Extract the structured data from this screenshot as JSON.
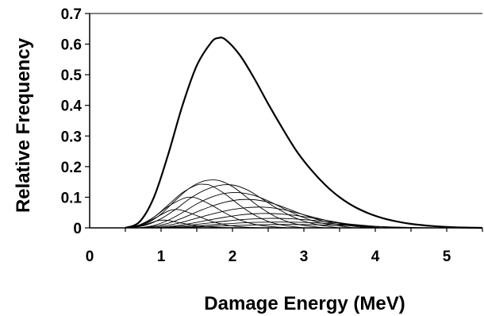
{
  "chart_data": {
    "type": "line",
    "title": "",
    "xlabel": "Damage Energy (MeV)",
    "ylabel": "Relative Frequency",
    "xlim": [
      0,
      5.5
    ],
    "ylim": [
      0,
      0.7
    ],
    "xticks": [
      "0",
      "1",
      "2",
      "3",
      "4",
      "5"
    ],
    "yticks": [
      "0",
      "0.1",
      "0.2",
      "0.3",
      "0.4",
      "0.5",
      "0.6",
      "0.7"
    ],
    "grid": false,
    "legend": "none",
    "series": [
      {
        "x": [
          0.5,
          0.7,
          0.9,
          1.1,
          1.3,
          1.5,
          1.7,
          1.8,
          1.9,
          2.1,
          2.3,
          2.5,
          2.7,
          2.9,
          3.1,
          3.3,
          3.5,
          3.7,
          3.9,
          4.1,
          4.3,
          4.5,
          4.8,
          5.1,
          5.5
        ],
        "y": [
          0.0,
          0.02,
          0.1,
          0.24,
          0.4,
          0.53,
          0.605,
          0.62,
          0.615,
          0.565,
          0.49,
          0.405,
          0.325,
          0.25,
          0.19,
          0.14,
          0.1,
          0.07,
          0.048,
          0.032,
          0.021,
          0.013,
          0.006,
          0.002,
          0.0
        ],
        "color": "#000000"
      },
      {
        "x": [
          0.5,
          0.7,
          0.9,
          1.0,
          1.1,
          1.3,
          1.5,
          1.7,
          1.9,
          2.1
        ],
        "y": [
          0.0,
          0.005,
          0.02,
          0.025,
          0.024,
          0.015,
          0.007,
          0.003,
          0.001,
          0.0
        ],
        "color": "#000000"
      },
      {
        "x": [
          0.5,
          0.7,
          0.9,
          1.1,
          1.2,
          1.3,
          1.5,
          1.7,
          1.9,
          2.1,
          2.3,
          2.5
        ],
        "y": [
          0.0,
          0.008,
          0.03,
          0.055,
          0.06,
          0.057,
          0.04,
          0.022,
          0.01,
          0.004,
          0.001,
          0.0
        ],
        "color": "#000000"
      },
      {
        "x": [
          0.5,
          0.7,
          0.9,
          1.1,
          1.3,
          1.4,
          1.5,
          1.7,
          1.9,
          2.1,
          2.3,
          2.5,
          2.8
        ],
        "y": [
          0.0,
          0.01,
          0.035,
          0.07,
          0.095,
          0.1,
          0.097,
          0.075,
          0.048,
          0.026,
          0.012,
          0.005,
          0.0
        ],
        "color": "#000000"
      },
      {
        "x": [
          0.5,
          0.7,
          0.9,
          1.1,
          1.3,
          1.5,
          1.6,
          1.7,
          1.9,
          2.1,
          2.3,
          2.5,
          2.7,
          3.0
        ],
        "y": [
          0.0,
          0.01,
          0.035,
          0.075,
          0.115,
          0.14,
          0.142,
          0.138,
          0.11,
          0.074,
          0.043,
          0.021,
          0.009,
          0.0
        ],
        "color": "#000000"
      },
      {
        "x": [
          0.6,
          0.8,
          1.0,
          1.2,
          1.4,
          1.6,
          1.8,
          2.0,
          2.2,
          2.4,
          2.6,
          2.8,
          3.0,
          3.3
        ],
        "y": [
          0.0,
          0.015,
          0.045,
          0.09,
          0.13,
          0.153,
          0.155,
          0.135,
          0.1,
          0.065,
          0.037,
          0.018,
          0.008,
          0.0
        ],
        "color": "#000000"
      },
      {
        "x": [
          0.6,
          0.8,
          1.0,
          1.2,
          1.4,
          1.6,
          1.8,
          2.0,
          2.2,
          2.4,
          2.6,
          2.8,
          3.0,
          3.2,
          3.5
        ],
        "y": [
          0.0,
          0.01,
          0.03,
          0.06,
          0.095,
          0.122,
          0.138,
          0.14,
          0.125,
          0.097,
          0.067,
          0.041,
          0.022,
          0.01,
          0.0
        ],
        "color": "#000000"
      },
      {
        "x": [
          0.7,
          0.9,
          1.1,
          1.3,
          1.5,
          1.7,
          1.9,
          2.1,
          2.3,
          2.5,
          2.7,
          2.9,
          3.1,
          3.3,
          3.7
        ],
        "y": [
          0.0,
          0.008,
          0.025,
          0.05,
          0.078,
          0.1,
          0.113,
          0.115,
          0.106,
          0.088,
          0.065,
          0.043,
          0.025,
          0.013,
          0.0
        ],
        "color": "#000000"
      },
      {
        "x": [
          0.7,
          0.9,
          1.1,
          1.3,
          1.5,
          1.7,
          1.9,
          2.1,
          2.3,
          2.5,
          2.7,
          2.9,
          3.1,
          3.3,
          3.5,
          3.9
        ],
        "y": [
          0.0,
          0.005,
          0.015,
          0.032,
          0.052,
          0.07,
          0.084,
          0.092,
          0.092,
          0.084,
          0.069,
          0.051,
          0.034,
          0.02,
          0.011,
          0.0
        ],
        "color": "#000000"
      },
      {
        "x": [
          0.8,
          1.0,
          1.2,
          1.4,
          1.6,
          1.8,
          2.0,
          2.2,
          2.4,
          2.6,
          2.8,
          3.0,
          3.2,
          3.4,
          3.6,
          4.0
        ],
        "y": [
          0.0,
          0.005,
          0.013,
          0.025,
          0.038,
          0.05,
          0.06,
          0.066,
          0.068,
          0.064,
          0.055,
          0.043,
          0.031,
          0.02,
          0.011,
          0.0
        ],
        "color": "#000000"
      },
      {
        "x": [
          0.9,
          1.1,
          1.3,
          1.5,
          1.7,
          1.9,
          2.1,
          2.3,
          2.5,
          2.7,
          2.9,
          3.1,
          3.3,
          3.5,
          3.7,
          4.1
        ],
        "y": [
          0.0,
          0.004,
          0.01,
          0.018,
          0.027,
          0.035,
          0.042,
          0.046,
          0.047,
          0.045,
          0.04,
          0.033,
          0.025,
          0.017,
          0.01,
          0.0
        ],
        "color": "#000000"
      },
      {
        "x": [
          1.0,
          1.3,
          1.6,
          1.9,
          2.2,
          2.5,
          2.8,
          3.1,
          3.4,
          3.7,
          4.0,
          4.3
        ],
        "y": [
          0.0,
          0.006,
          0.014,
          0.022,
          0.028,
          0.031,
          0.03,
          0.025,
          0.018,
          0.011,
          0.005,
          0.0
        ],
        "color": "#000000"
      },
      {
        "x": [
          1.1,
          1.5,
          1.9,
          2.3,
          2.7,
          3.1,
          3.5,
          3.9,
          4.3,
          4.6
        ],
        "y": [
          0.0,
          0.006,
          0.013,
          0.018,
          0.019,
          0.017,
          0.012,
          0.006,
          0.002,
          0.0
        ],
        "color": "#000000"
      },
      {
        "x": [
          1.2,
          1.7,
          2.2,
          2.7,
          3.2,
          3.7,
          4.2,
          4.8
        ],
        "y": [
          0.0,
          0.005,
          0.009,
          0.011,
          0.01,
          0.007,
          0.003,
          0.0
        ],
        "color": "#000000"
      }
    ]
  }
}
